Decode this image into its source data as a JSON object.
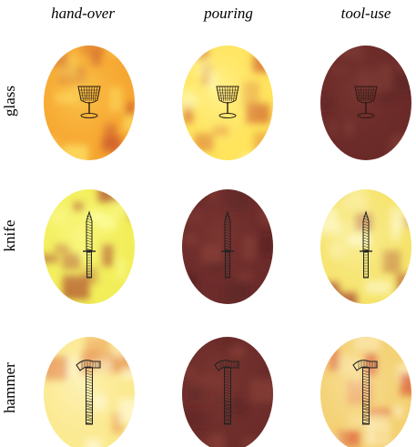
{
  "columns": [
    "hand-over",
    "pouring",
    "tool-use"
  ],
  "rows": [
    "glass",
    "knife",
    "hammer"
  ],
  "heatmaps": [
    {
      "object": "glass",
      "task": "hand-over",
      "object_icon": "glass-icon",
      "base_color": "#f6a530",
      "highlight_color": "#ffe96a",
      "dark_color": "#c8502a"
    },
    {
      "object": "glass",
      "task": "pouring",
      "object_icon": "glass-icon",
      "base_color": "#ffe35a",
      "highlight_color": "#ffffc0",
      "dark_color": "#d2602c"
    },
    {
      "object": "glass",
      "task": "tool-use",
      "object_icon": "glass-icon",
      "base_color": "#6a2a28",
      "highlight_color": "#86403a",
      "dark_color": "#52201e"
    },
    {
      "object": "knife",
      "task": "hand-over",
      "object_icon": "knife-icon",
      "base_color": "#f2ee58",
      "highlight_color": "#ffffa8",
      "dark_color": "#a83c2a"
    },
    {
      "object": "knife",
      "task": "pouring",
      "object_icon": "knife-icon",
      "base_color": "#6b2b2a",
      "highlight_color": "#8a4038",
      "dark_color": "#4e1e1e"
    },
    {
      "object": "knife",
      "task": "tool-use",
      "object_icon": "knife-icon",
      "base_color": "#f5e36a",
      "highlight_color": "#fffbd4",
      "dark_color": "#a2392c"
    },
    {
      "object": "hammer",
      "task": "hand-over",
      "object_icon": "hammer-icon",
      "base_color": "#fbe98e",
      "highlight_color": "#fffbe0",
      "dark_color": "#e0702e"
    },
    {
      "object": "hammer",
      "task": "pouring",
      "object_icon": "hammer-icon",
      "base_color": "#6c2c2a",
      "highlight_color": "#8c4238",
      "dark_color": "#4e1e1e"
    },
    {
      "object": "hammer",
      "task": "tool-use",
      "object_icon": "hammer-icon",
      "base_color": "#f3d070",
      "highlight_color": "#fff2cc",
      "dark_color": "#d63a2a"
    }
  ]
}
